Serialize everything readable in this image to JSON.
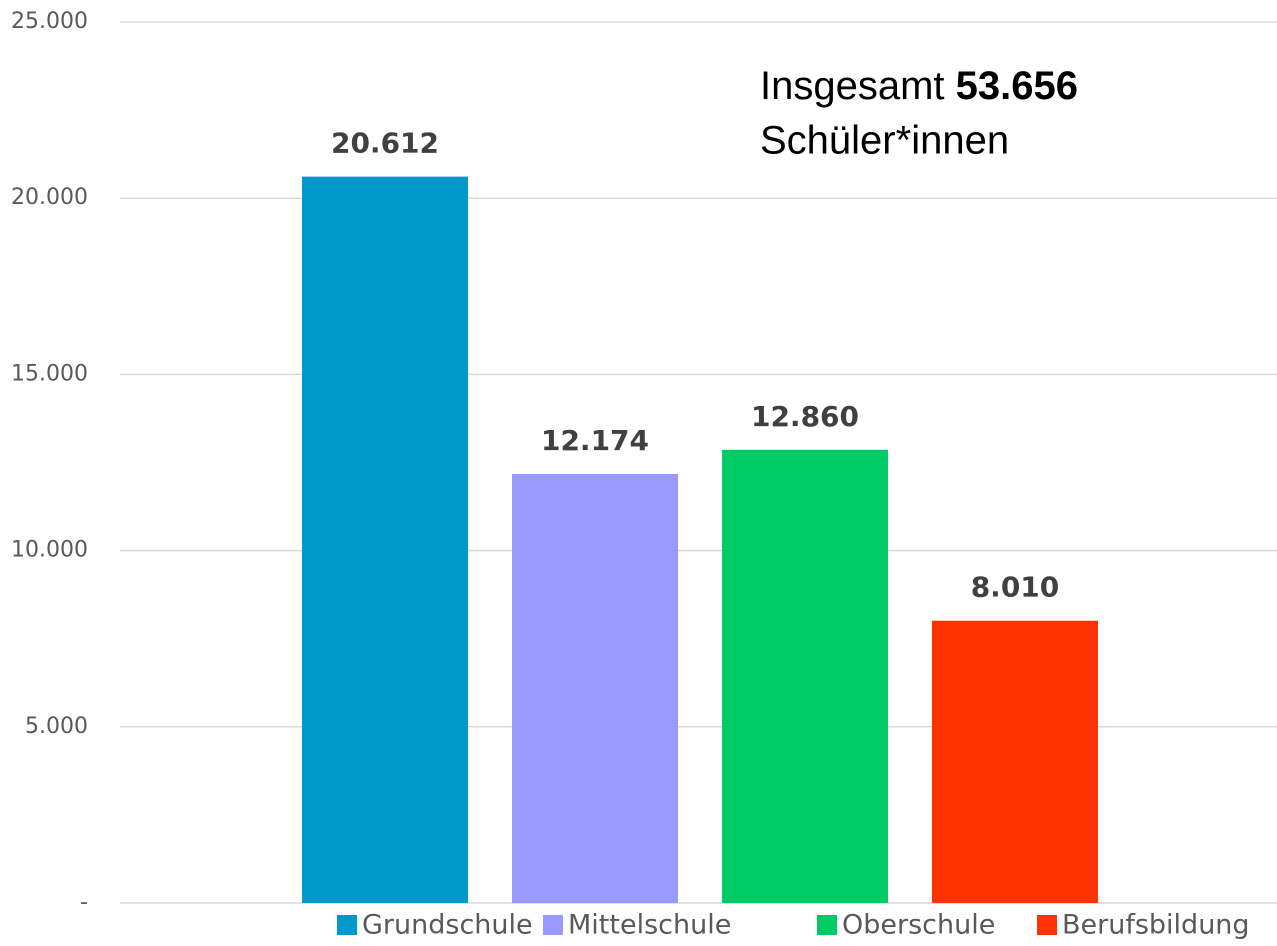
{
  "chart_data": {
    "type": "bar",
    "annotation": {
      "lead": "Insgesamt",
      "total": "53.656",
      "line2": "Schüler*innen"
    },
    "categories": [
      "Grundschule",
      "Mittelschule",
      "Oberschule",
      "Berufsbildung"
    ],
    "values": [
      20612,
      12174,
      12860,
      8010
    ],
    "value_labels": [
      "20.612",
      "12.174",
      "12.860",
      "8.010"
    ],
    "colors": [
      "#0099cc",
      "#9999ff",
      "#00cc66",
      "#ff3300"
    ],
    "ylim": [
      0,
      25000
    ],
    "yticks": [
      {
        "value": 0,
        "label": "-"
      },
      {
        "value": 5000,
        "label": "5.000"
      },
      {
        "value": 10000,
        "label": "10.000"
      },
      {
        "value": 15000,
        "label": "15.000"
      },
      {
        "value": 20000,
        "label": "20.000"
      },
      {
        "value": 25000,
        "label": "25.000"
      }
    ],
    "grid": true,
    "legend": "bottom"
  }
}
